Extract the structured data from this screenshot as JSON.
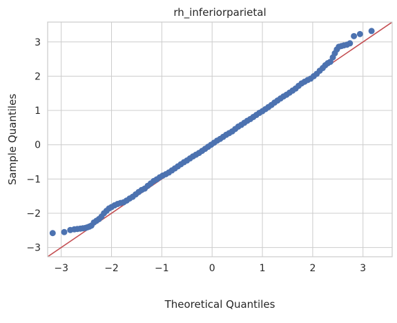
{
  "chart_data": {
    "type": "scatter",
    "title": "rh_inferiorparietal",
    "xlabel": "Theoretical Quantiles",
    "ylabel": "Sample Quantiles",
    "xlim": [
      -3.27,
      3.58
    ],
    "ylim": [
      -3.27,
      3.58
    ],
    "xticks": [
      -3,
      -2,
      -1,
      0,
      1,
      2,
      3
    ],
    "yticks": [
      -3,
      -2,
      -1,
      0,
      1,
      2,
      3
    ],
    "xtick_labels": [
      "−3",
      "−2",
      "−1",
      "0",
      "1",
      "2",
      "3"
    ],
    "ytick_labels": [
      "−3",
      "−2",
      "−1",
      "0",
      "1",
      "2",
      "3"
    ],
    "grid": true,
    "colors": {
      "points": "#4c72b0",
      "reference_line": "#c44e52",
      "grid": "#cccccc",
      "frame": "#cccccc"
    },
    "reference_line": {
      "slope": 1,
      "intercept": 0
    },
    "points": {
      "x": [
        -3.17,
        -2.94,
        -2.82,
        -2.74,
        -2.68,
        -2.62,
        -2.57,
        -2.52,
        -2.48,
        -2.44,
        -2.4,
        -2.35,
        -2.3,
        -2.25,
        -2.2,
        -2.15,
        -2.1,
        -2.05,
        -2.0,
        -1.94,
        -1.88,
        -1.82,
        -1.76,
        -1.7,
        -1.64,
        -1.58,
        -1.52,
        -1.46,
        -1.4,
        -1.34,
        -1.28,
        -1.22,
        -1.16,
        -1.1,
        -1.04,
        -0.98,
        -0.92,
        -0.86,
        -0.8,
        -0.74,
        -0.68,
        -0.62,
        -0.56,
        -0.5,
        -0.44,
        -0.38,
        -0.32,
        -0.26,
        -0.2,
        -0.14,
        -0.08,
        -0.02,
        0.04,
        0.1,
        0.16,
        0.22,
        0.28,
        0.34,
        0.4,
        0.46,
        0.52,
        0.58,
        0.64,
        0.7,
        0.76,
        0.82,
        0.88,
        0.94,
        1.0,
        1.06,
        1.12,
        1.18,
        1.24,
        1.3,
        1.36,
        1.42,
        1.48,
        1.54,
        1.6,
        1.66,
        1.72,
        1.78,
        1.84,
        1.9,
        1.96,
        2.02,
        2.08,
        2.14,
        2.2,
        2.25,
        2.3,
        2.35,
        2.4,
        2.44,
        2.48,
        2.52,
        2.57,
        2.62,
        2.68,
        2.74,
        2.82,
        2.94,
        3.17
      ],
      "y": [
        -2.58,
        -2.55,
        -2.49,
        -2.47,
        -2.46,
        -2.45,
        -2.44,
        -2.43,
        -2.41,
        -2.39,
        -2.36,
        -2.27,
        -2.22,
        -2.17,
        -2.1,
        -2.0,
        -1.93,
        -1.86,
        -1.82,
        -1.77,
        -1.73,
        -1.7,
        -1.68,
        -1.63,
        -1.57,
        -1.52,
        -1.45,
        -1.38,
        -1.32,
        -1.28,
        -1.2,
        -1.13,
        -1.06,
        -1.01,
        -0.95,
        -0.9,
        -0.86,
        -0.81,
        -0.75,
        -0.69,
        -0.63,
        -0.57,
        -0.51,
        -0.46,
        -0.4,
        -0.34,
        -0.29,
        -0.24,
        -0.18,
        -0.12,
        -0.06,
        0.0,
        0.06,
        0.12,
        0.17,
        0.23,
        0.29,
        0.34,
        0.39,
        0.46,
        0.53,
        0.58,
        0.64,
        0.7,
        0.75,
        0.81,
        0.87,
        0.93,
        0.98,
        1.04,
        1.1,
        1.16,
        1.23,
        1.29,
        1.35,
        1.41,
        1.46,
        1.52,
        1.58,
        1.64,
        1.72,
        1.79,
        1.84,
        1.89,
        1.93,
        2.0,
        2.07,
        2.16,
        2.24,
        2.32,
        2.38,
        2.42,
        2.55,
        2.67,
        2.78,
        2.86,
        2.88,
        2.9,
        2.92,
        2.96,
        3.17,
        3.23,
        3.32
      ]
    }
  }
}
